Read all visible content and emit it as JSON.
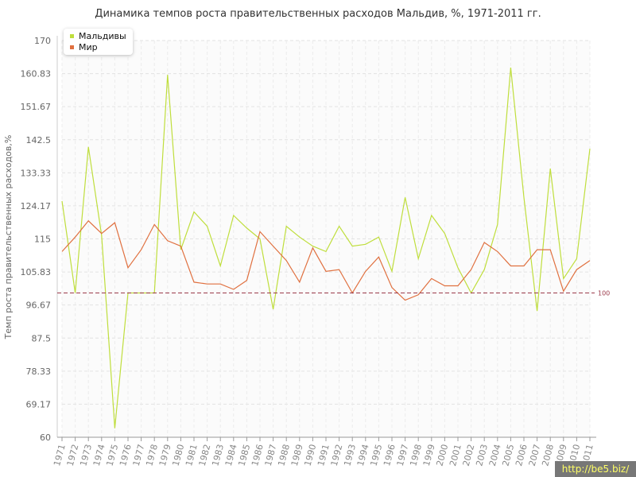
{
  "title": "Динамика темпов роста правительственных расходов Мальдив, %, 1971-2011 гг.",
  "watermark": "http://be5.biz/",
  "colors": {
    "maldives": "#bfde3c",
    "world": "#e0703f",
    "reference": "#9b3a4a"
  },
  "chart_data": {
    "type": "line",
    "title": "Динамика темпов роста правительственных расходов Мальдив, %, 1971-2011 гг.",
    "xlabel": "",
    "ylabel": "Темп роста правительственных расходов,%",
    "ylim": [
      60,
      170
    ],
    "yticks": [
      "60",
      "69.17",
      "78.33",
      "87.5",
      "96.67",
      "105.83",
      "115",
      "124.17",
      "133.33",
      "142.5",
      "151.67",
      "160.83",
      "170"
    ],
    "grid": true,
    "legend_position": "top-left",
    "reference_line": {
      "value": 100,
      "label": "100"
    },
    "x": [
      "1971",
      "1972",
      "1973",
      "1974",
      "1975",
      "1976",
      "1977",
      "1978",
      "1979",
      "1980",
      "1981",
      "1982",
      "1983",
      "1984",
      "1985",
      "1986",
      "1987",
      "1988",
      "1989",
      "1990",
      "1991",
      "1992",
      "1993",
      "1994",
      "1995",
      "1996",
      "1997",
      "1998",
      "1999",
      "2000",
      "2001",
      "2002",
      "2003",
      "2004",
      "2005",
      "2006",
      "2007",
      "2008",
      "2009",
      "2010",
      "2011"
    ],
    "series": [
      {
        "name": "Мальдивы",
        "color": "#bfde3c",
        "values": [
          125.5,
          100,
          140.5,
          116,
          62.5,
          100,
          100,
          100,
          160.5,
          112,
          122.5,
          118.5,
          107.5,
          121.5,
          118,
          115,
          95.5,
          118.5,
          115.5,
          113,
          111.5,
          118.5,
          113,
          113.5,
          115.5,
          106,
          126.5,
          109.5,
          121.5,
          116.5,
          107,
          100,
          106.5,
          119,
          162.5,
          126.5,
          95,
          134.5,
          104,
          109.5,
          140
        ]
      },
      {
        "name": "Мир",
        "color": "#e0703f",
        "values": [
          111.5,
          115.5,
          120,
          116.5,
          119.5,
          107,
          112,
          119,
          114.5,
          113,
          103,
          102.5,
          102.5,
          101,
          103.5,
          117,
          113,
          109,
          103,
          112.5,
          106,
          106.5,
          100,
          106,
          110,
          101.5,
          98,
          99.5,
          104,
          102,
          102,
          106.5,
          114,
          111.5,
          107.5,
          107.5,
          112,
          112,
          100.5,
          106.5,
          109
        ]
      }
    ]
  }
}
